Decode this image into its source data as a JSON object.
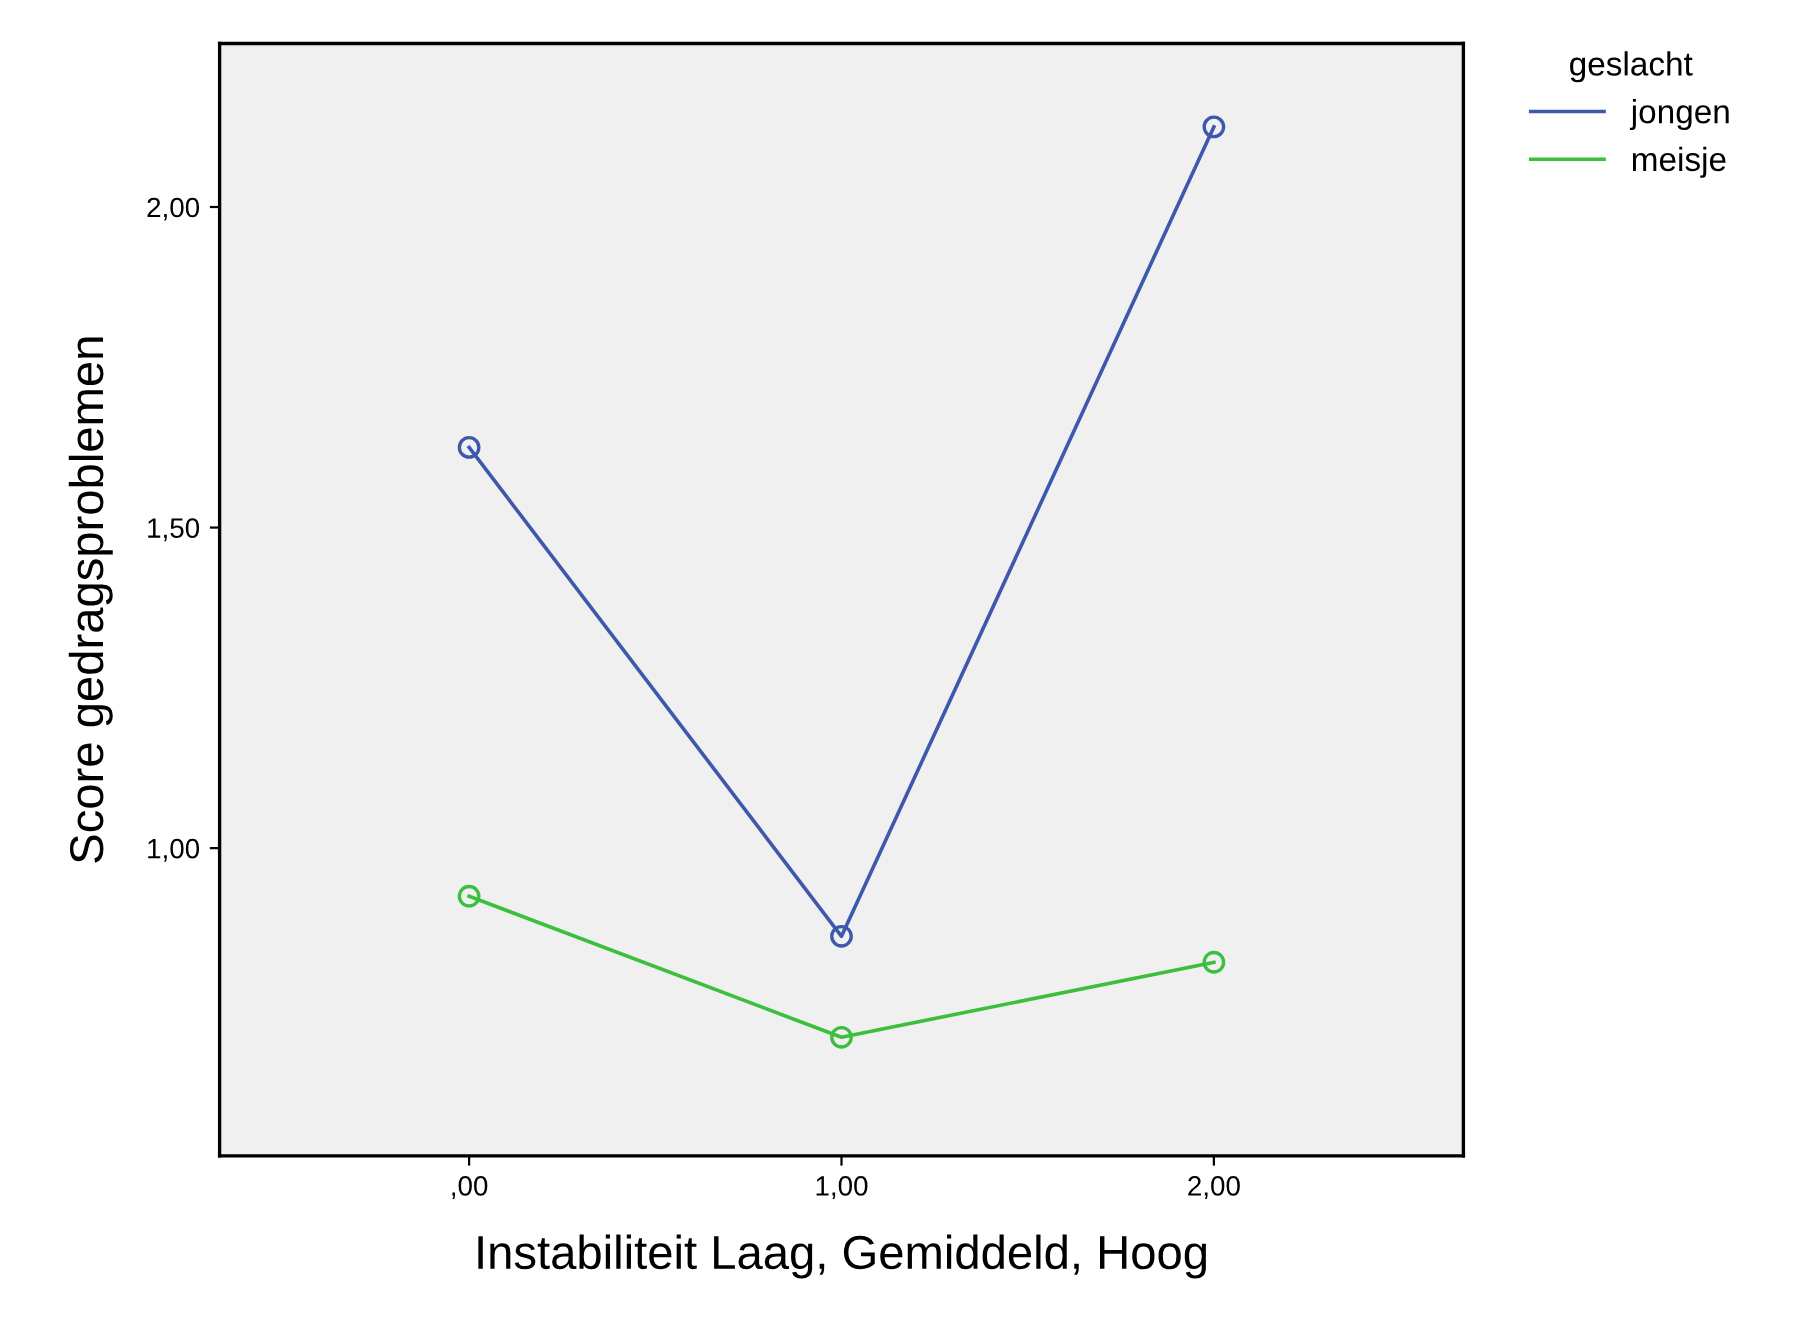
{
  "chart_data": {
    "type": "line",
    "xlabel": "Instabiliteit Laag, Gemiddeld, Hoog",
    "ylabel": "Score gedragsproblemen",
    "legend_title": "geslacht",
    "categories": [
      ",00",
      "1,00",
      "2,00"
    ],
    "series": [
      {
        "name": "jongen",
        "color": "#3e58ac",
        "values": [
          1.625,
          0.8625,
          2.125
        ]
      },
      {
        "name": "meisje",
        "color": "#3cbf3c",
        "values": [
          0.925,
          0.705,
          0.822
        ]
      }
    ],
    "ylim": [
      0.52,
      2.255
    ],
    "yticks": [
      {
        "value": 1.0,
        "label": "1,00"
      },
      {
        "value": 1.5,
        "label": "1,50"
      },
      {
        "value": 2.0,
        "label": "2,00"
      }
    ],
    "marker": "circle",
    "line_style": "solid",
    "grid": false,
    "legend": "top right"
  }
}
